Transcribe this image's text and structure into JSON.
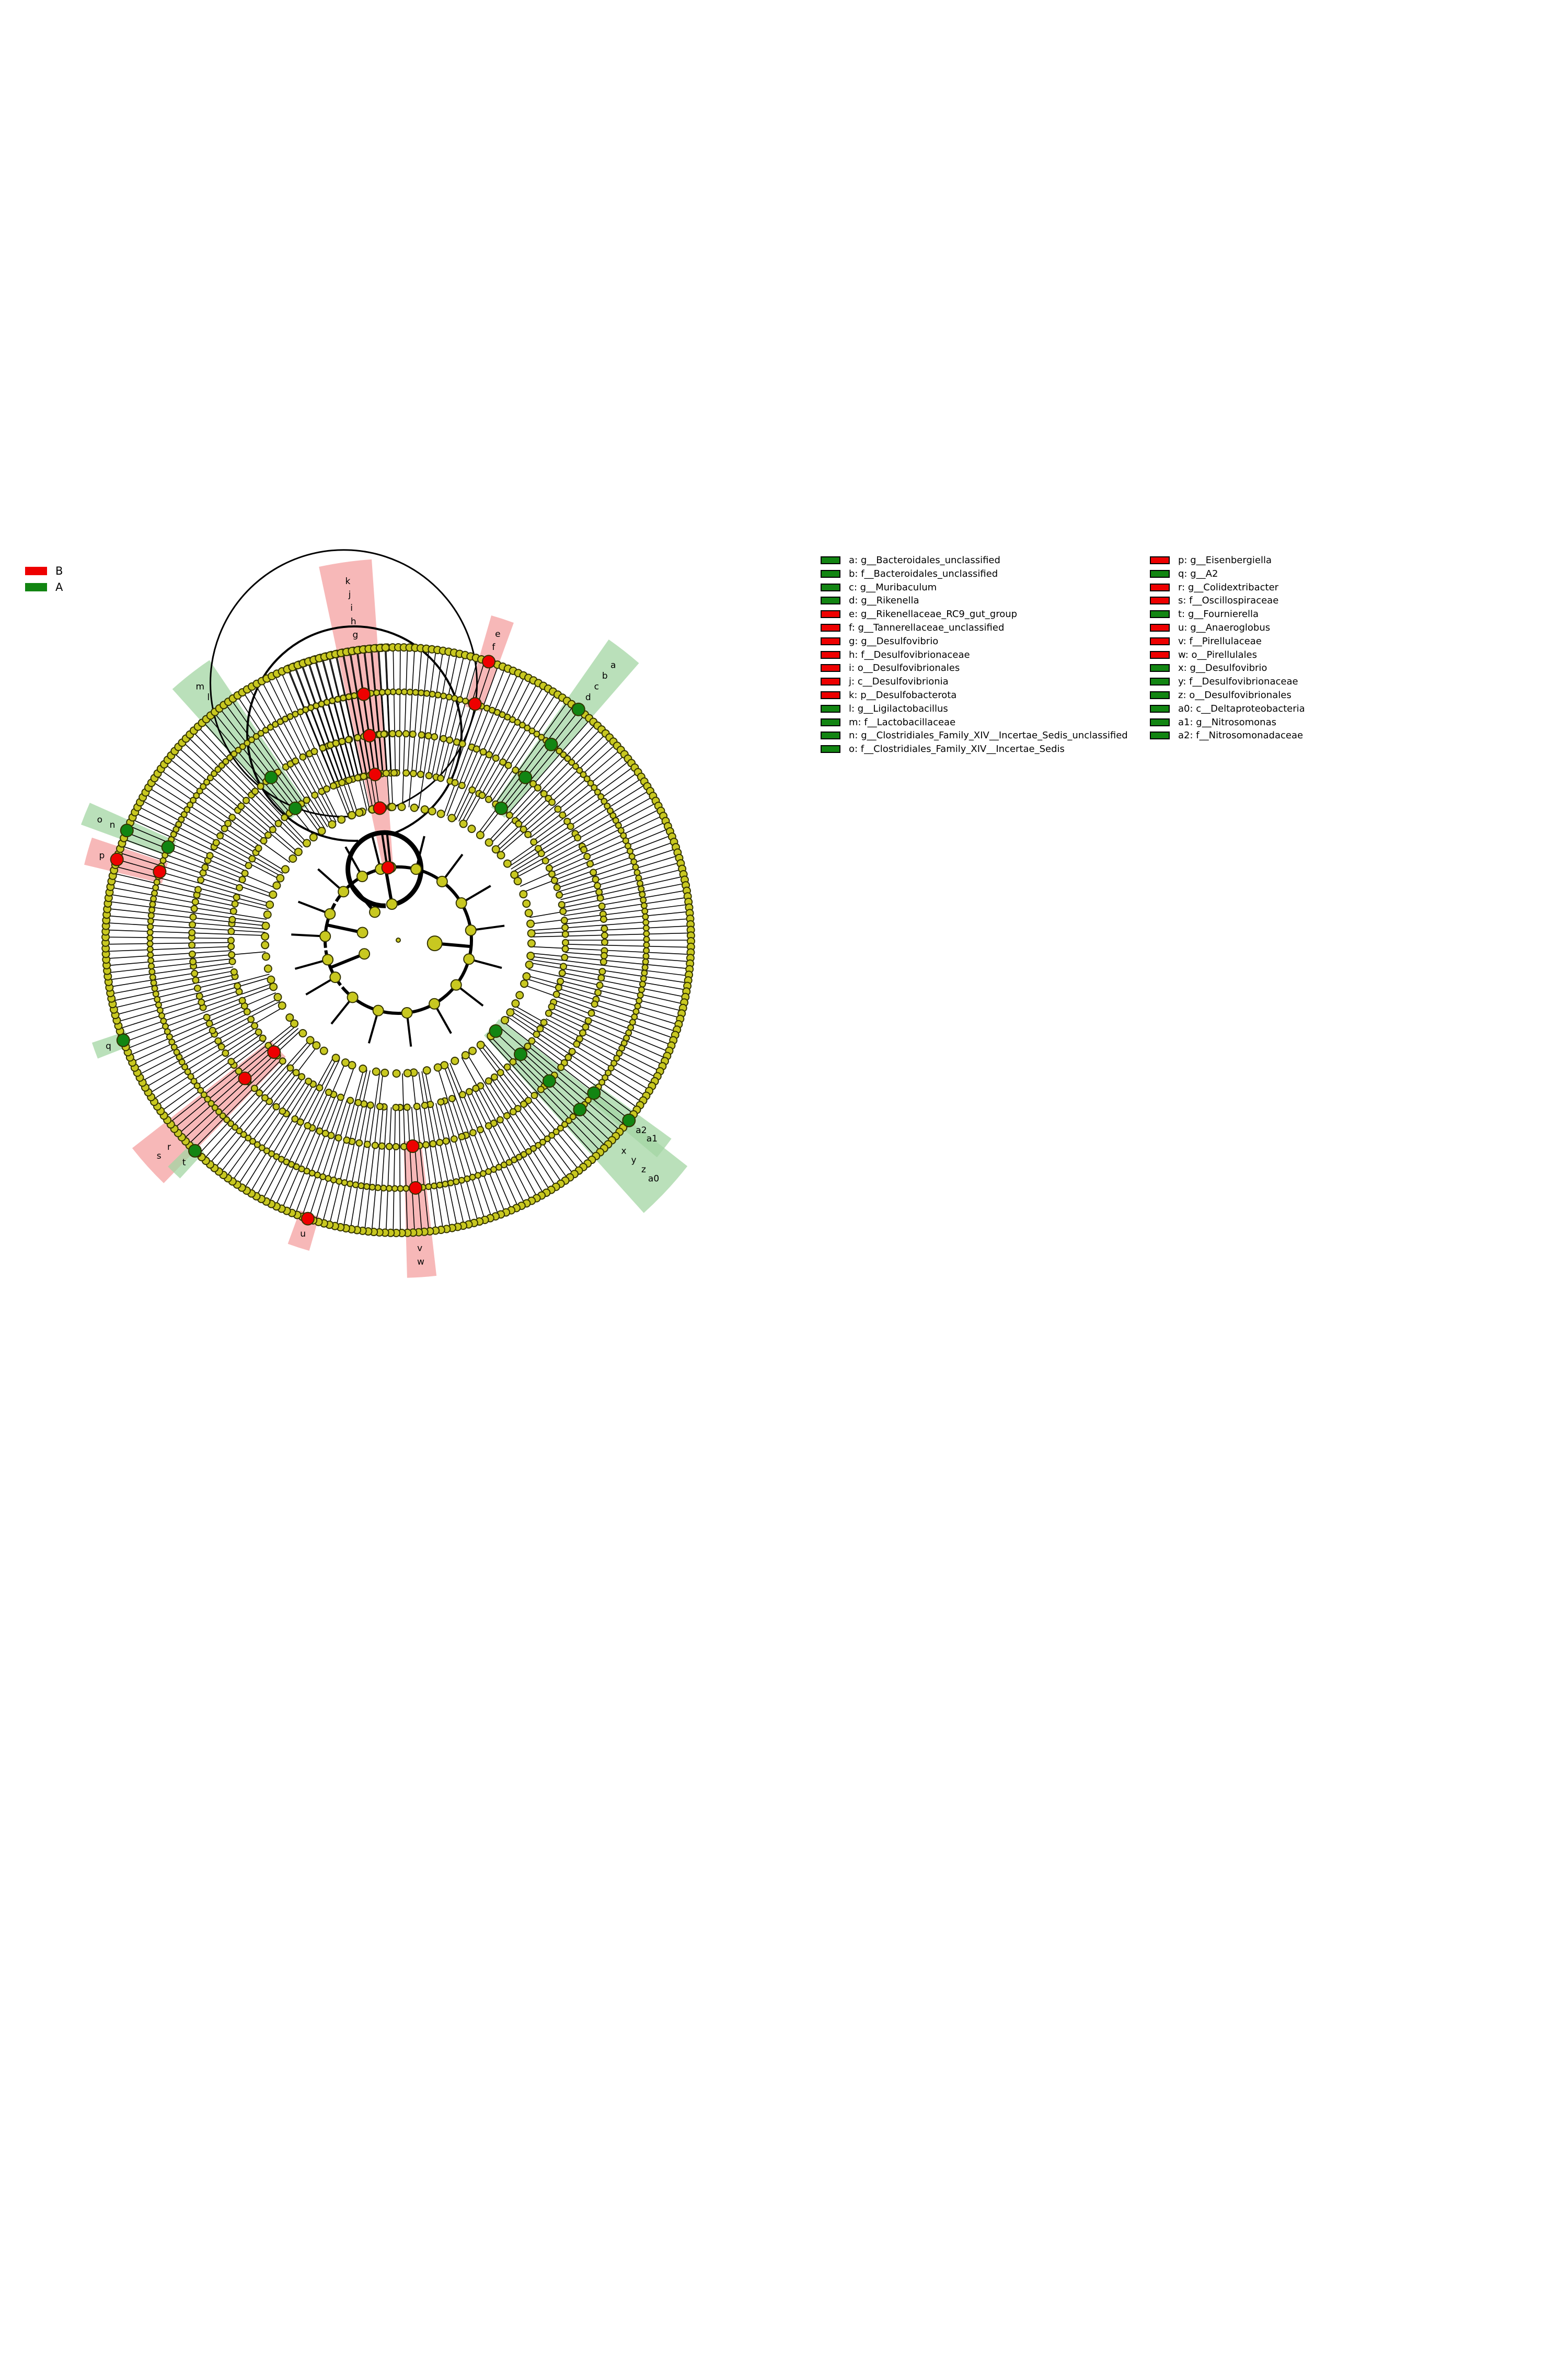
{
  "groups": [
    {
      "name": "B",
      "color": "#ee0000"
    },
    {
      "name": "A",
      "color": "#128512"
    }
  ],
  "colors": {
    "node": "#c8c820",
    "node_stroke": "#333300",
    "line": "#000000",
    "B": "#ee0000",
    "A": "#128512",
    "B_shade": "#f4a0a0",
    "A_shade": "#a3d6a3"
  },
  "clades": [
    {
      "key": "a",
      "text": "a: g__Bacteroidales_unclassified",
      "group": "A"
    },
    {
      "key": "b",
      "text": "b: f__Bacteroidales_unclassified",
      "group": "A"
    },
    {
      "key": "c",
      "text": "c: g__Muribaculum",
      "group": "A"
    },
    {
      "key": "d",
      "text": "d: g__Rikenella",
      "group": "A"
    },
    {
      "key": "e",
      "text": "e: g__Rikenellaceae_RC9_gut_group",
      "group": "B"
    },
    {
      "key": "f",
      "text": "f: g__Tannerellaceae_unclassified",
      "group": "B"
    },
    {
      "key": "g",
      "text": "g: g__Desulfovibrio",
      "group": "B"
    },
    {
      "key": "h",
      "text": "h: f__Desulfovibrionaceae",
      "group": "B"
    },
    {
      "key": "i",
      "text": "i: o__Desulfovibrionales",
      "group": "B"
    },
    {
      "key": "j",
      "text": "j: c__Desulfovibrionia",
      "group": "B"
    },
    {
      "key": "k",
      "text": "k: p__Desulfobacterota",
      "group": "B"
    },
    {
      "key": "l",
      "text": "l: g__Ligilactobacillus",
      "group": "A"
    },
    {
      "key": "m",
      "text": "m: f__Lactobacillaceae",
      "group": "A"
    },
    {
      "key": "n",
      "text": "n: g__Clostridiales_Family_XIV__Incertae_Sedis_unclassified",
      "group": "A"
    },
    {
      "key": "o",
      "text": "o: f__Clostridiales_Family_XIV__Incertae_Sedis",
      "group": "A"
    },
    {
      "key": "p",
      "text": "p: g__Eisenbergiella",
      "group": "B"
    },
    {
      "key": "q",
      "text": "q: g__A2",
      "group": "A"
    },
    {
      "key": "r",
      "text": "r: g__Colidextribacter",
      "group": "B"
    },
    {
      "key": "s",
      "text": "s: f__Oscillospiraceae",
      "group": "B"
    },
    {
      "key": "t",
      "text": "t: g__Fournierella",
      "group": "A"
    },
    {
      "key": "u",
      "text": "u: g__Anaeroglobus",
      "group": "B"
    },
    {
      "key": "v",
      "text": "v: f__Pirellulaceae",
      "group": "B"
    },
    {
      "key": "w",
      "text": "w: o__Pirellulales",
      "group": "B"
    },
    {
      "key": "x",
      "text": "x: g__Desulfovibrio",
      "group": "A"
    },
    {
      "key": "y",
      "text": "y: f__Desulfovibrionaceae",
      "group": "A"
    },
    {
      "key": "z",
      "text": "z: o__Desulfovibrionales",
      "group": "A"
    },
    {
      "key": "a0",
      "text": "a0: c__Deltaproteobacteria",
      "group": "A"
    },
    {
      "key": "a1",
      "text": "a1: g__Nitrosomonas",
      "group": "A"
    },
    {
      "key": "a2",
      "text": "a2: f__Nitrosomonadaceae",
      "group": "A"
    }
  ]
}
